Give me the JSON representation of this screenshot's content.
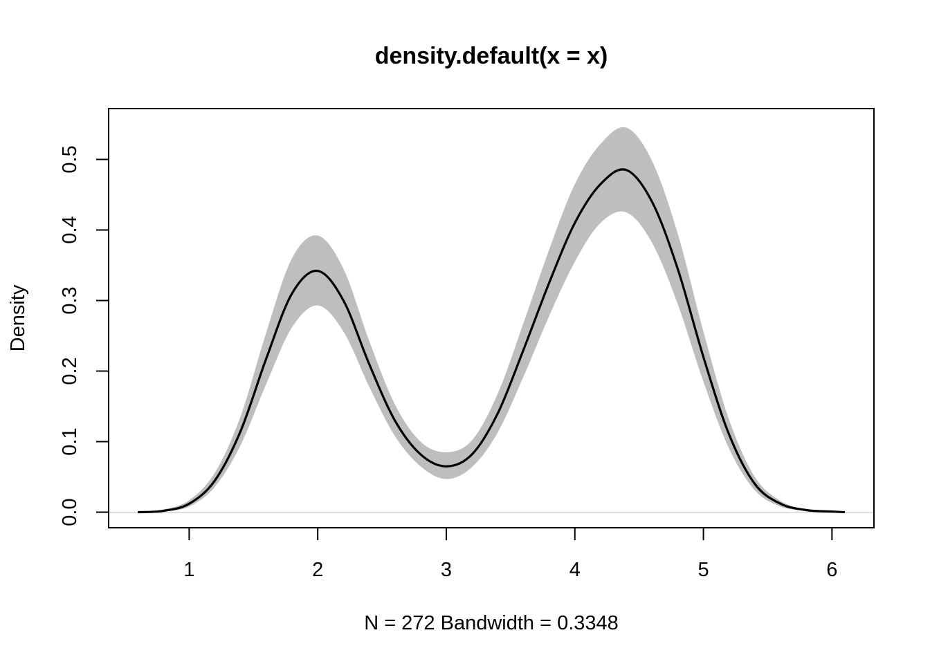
{
  "chart_data": {
    "type": "line",
    "title": "density.default(x = x)",
    "xlabel": "N = 272   Bandwidth = 0.3348",
    "ylabel": "Density",
    "xlim": [
      0.6,
      6.1
    ],
    "ylim": [
      0,
      0.55
    ],
    "x_ticks": [
      "1",
      "2",
      "3",
      "4",
      "5",
      "6"
    ],
    "y_ticks": [
      "0.0",
      "0.1",
      "0.2",
      "0.3",
      "0.4",
      "0.5"
    ],
    "grid": false,
    "colors": {
      "line": "#000000",
      "band": "#bebebe",
      "zero_line": "#bebebe"
    },
    "series": [
      {
        "x": [
          0.6,
          0.8,
          1.0,
          1.2,
          1.4,
          1.6,
          1.8,
          2.0,
          2.2,
          2.4,
          2.6,
          2.8,
          3.0,
          3.2,
          3.4,
          3.6,
          3.8,
          4.0,
          4.2,
          4.4,
          4.6,
          4.8,
          5.0,
          5.2,
          5.4,
          5.6,
          5.8,
          6.0,
          6.1
        ],
        "y": [
          0.0,
          0.002,
          0.012,
          0.045,
          0.115,
          0.218,
          0.31,
          0.342,
          0.3,
          0.21,
          0.13,
          0.082,
          0.065,
          0.082,
          0.14,
          0.23,
          0.325,
          0.41,
          0.465,
          0.485,
          0.44,
          0.345,
          0.22,
          0.11,
          0.04,
          0.012,
          0.003,
          0.001,
          0.0
        ],
        "lower": [
          0.0,
          0.001,
          0.008,
          0.036,
          0.095,
          0.182,
          0.262,
          0.293,
          0.256,
          0.178,
          0.108,
          0.065,
          0.047,
          0.064,
          0.113,
          0.192,
          0.278,
          0.355,
          0.41,
          0.425,
          0.382,
          0.295,
          0.185,
          0.09,
          0.031,
          0.008,
          0.002,
          0.0,
          0.0
        ],
        "upper": [
          0.001,
          0.004,
          0.017,
          0.056,
          0.136,
          0.255,
          0.36,
          0.392,
          0.345,
          0.243,
          0.153,
          0.1,
          0.085,
          0.102,
          0.168,
          0.268,
          0.372,
          0.465,
          0.522,
          0.545,
          0.498,
          0.395,
          0.256,
          0.131,
          0.05,
          0.016,
          0.004,
          0.001,
          0.0
        ]
      }
    ]
  }
}
